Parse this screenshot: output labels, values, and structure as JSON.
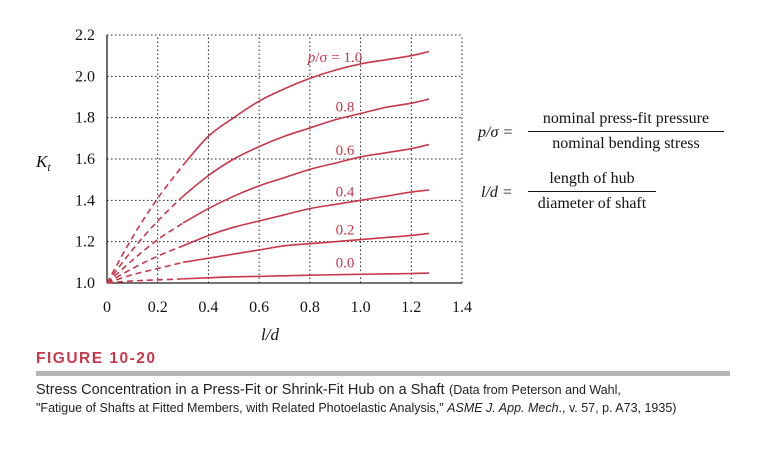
{
  "chart_data": {
    "type": "line",
    "ylabel": "K",
    "ylabel_sub": "t",
    "xlabel": "l/d",
    "xlim": [
      0,
      1.4
    ],
    "ylim": [
      1.0,
      2.2
    ],
    "xticks": [
      "0",
      "0.2",
      "0.4",
      "0.6",
      "0.8",
      "1.0",
      "1.2",
      "1.4"
    ],
    "yticks": [
      "1.0",
      "1.2",
      "1.4",
      "1.6",
      "1.8",
      "2.0",
      "2.2"
    ],
    "grid": true,
    "series": [
      {
        "name": "p/σ = 1.0",
        "x": [
          0.0,
          0.1,
          0.2,
          0.3,
          0.4,
          0.5,
          0.6,
          0.7,
          0.8,
          0.9,
          1.0,
          1.1,
          1.2,
          1.27
        ],
        "y": [
          1.0,
          1.22,
          1.41,
          1.57,
          1.71,
          1.8,
          1.88,
          1.94,
          1.99,
          2.03,
          2.06,
          2.08,
          2.1,
          2.12
        ],
        "dashed_until": 0.3
      },
      {
        "name": "0.8",
        "x": [
          0.0,
          0.1,
          0.2,
          0.3,
          0.4,
          0.5,
          0.6,
          0.7,
          0.8,
          0.9,
          1.0,
          1.1,
          1.2,
          1.27
        ],
        "y": [
          1.0,
          1.16,
          1.3,
          1.42,
          1.52,
          1.6,
          1.66,
          1.71,
          1.75,
          1.79,
          1.82,
          1.85,
          1.87,
          1.89
        ],
        "dashed_until": 0.3
      },
      {
        "name": "0.6",
        "x": [
          0.0,
          0.1,
          0.2,
          0.3,
          0.4,
          0.5,
          0.6,
          0.7,
          0.8,
          0.9,
          1.0,
          1.1,
          1.2,
          1.27
        ],
        "y": [
          1.0,
          1.11,
          1.21,
          1.29,
          1.36,
          1.42,
          1.47,
          1.51,
          1.55,
          1.58,
          1.61,
          1.63,
          1.65,
          1.67
        ],
        "dashed_until": 0.3
      },
      {
        "name": "0.4",
        "x": [
          0.0,
          0.1,
          0.2,
          0.3,
          0.4,
          0.5,
          0.6,
          0.7,
          0.8,
          0.9,
          1.0,
          1.1,
          1.2,
          1.27
        ],
        "y": [
          1.0,
          1.07,
          1.13,
          1.18,
          1.23,
          1.27,
          1.3,
          1.33,
          1.36,
          1.38,
          1.4,
          1.42,
          1.44,
          1.45
        ],
        "dashed_until": 0.3
      },
      {
        "name": "0.2",
        "x": [
          0.0,
          0.1,
          0.2,
          0.3,
          0.4,
          0.5,
          0.6,
          0.7,
          0.8,
          0.9,
          1.0,
          1.1,
          1.2,
          1.27
        ],
        "y": [
          1.0,
          1.04,
          1.07,
          1.1,
          1.12,
          1.14,
          1.16,
          1.18,
          1.19,
          1.2,
          1.21,
          1.22,
          1.23,
          1.24
        ],
        "dashed_until": 0.3
      },
      {
        "name": "0.0",
        "x": [
          0.0,
          0.1,
          0.2,
          0.3,
          0.4,
          0.5,
          0.6,
          0.7,
          0.8,
          0.9,
          1.0,
          1.1,
          1.2,
          1.27
        ],
        "y": [
          1.0,
          1.01,
          1.015,
          1.02,
          1.025,
          1.03,
          1.032,
          1.035,
          1.038,
          1.04,
          1.042,
          1.044,
          1.046,
          1.048
        ],
        "dashed_until": 0.3
      }
    ],
    "line_color": "#c8384a",
    "grid_color": "#222222"
  },
  "equations": [
    {
      "lhs": "p/σ =",
      "numerator": "nominal press-fit pressure",
      "denominator": "nominal bending stress"
    },
    {
      "lhs": "l/d =",
      "numerator": "length of hub",
      "denominator": "diameter of shaft"
    }
  ],
  "figure": {
    "label": "FIGURE 10-20",
    "caption_title": "Stress Concentration in a Press-Fit or Shrink-Fit Hub on a Shaft",
    "caption_source_1": "(Data from Peterson and Wahl,",
    "caption_source_2a": "\"Fatigue of Shafts at Fitted Members, with Related Photoelastic Analysis,\" ",
    "caption_source_2b": "ASME J. App. Mech",
    "caption_source_2c": "., v. 57, p. A73, 1935)"
  }
}
